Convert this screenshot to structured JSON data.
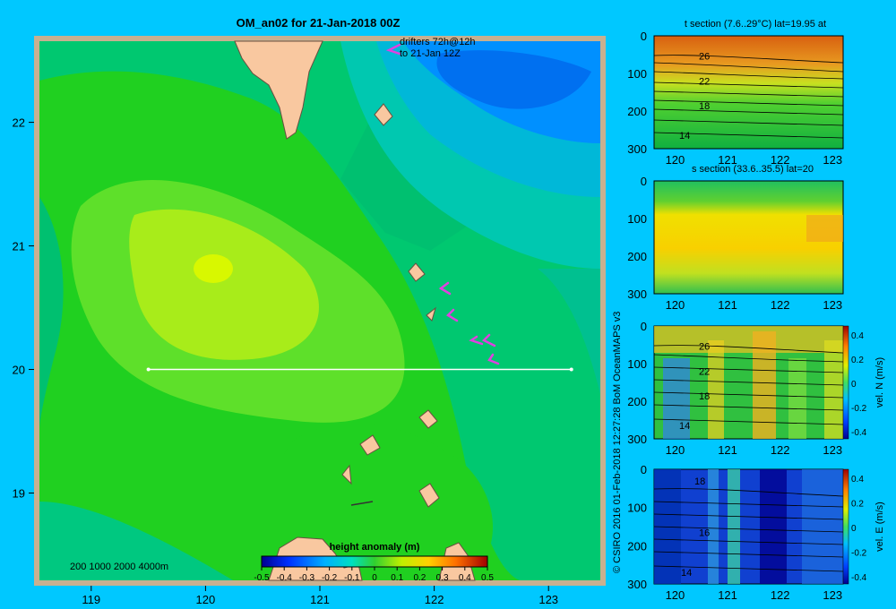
{
  "map": {
    "title": "OM_an02 for 21-Jan-2018 00Z",
    "drifter_note_line1": "drifters 72h@12h",
    "drifter_note_line2": "to 21-Jan 12Z",
    "depth_legend": "200  1000  2000  4000m",
    "colorbar_label": "height anomaly  (m)",
    "colorbar_ticks": [
      "-0.5",
      "-0.4",
      "-0.3",
      "-0.2",
      "-0.1",
      "0",
      "0.1",
      "0.2",
      "0.3",
      "0.4",
      "0.5"
    ],
    "x_ticks": [
      "119",
      "120",
      "121",
      "122",
      "123"
    ],
    "y_ticks": [
      "22",
      "21",
      "20",
      "19"
    ],
    "section_line": {
      "lat": 20,
      "lon_start": 119.5,
      "lon_end": 123.2
    }
  },
  "credit": "© CSIRO 2016   01-Feb-2018 12:27:28 BoM OceanMAPS v3",
  "panels": [
    {
      "title": "t section (7.6..29°C) lat=19.95 at",
      "y_ticks": [
        "0",
        "100",
        "200",
        "300"
      ],
      "x_ticks": [
        "120",
        "121",
        "122",
        "123"
      ],
      "contour_labels": [
        "26",
        "22",
        "18",
        "14"
      ]
    },
    {
      "title": "s section (33.6..35.5) lat=20",
      "y_ticks": [
        "0",
        "100",
        "200",
        "300"
      ],
      "x_ticks": [
        "120",
        "121",
        "122",
        "123"
      ]
    },
    {
      "title": "",
      "y_ticks": [
        "0",
        "100",
        "200",
        "300"
      ],
      "x_ticks": [
        "120",
        "121",
        "122",
        "123"
      ],
      "contour_labels": [
        "26",
        "22",
        "18",
        "14"
      ],
      "cbar_label": "vel. N (m/s)",
      "cbar_ticks": [
        "0.4",
        "0.2",
        "0",
        "-0.2",
        "-0.4"
      ]
    },
    {
      "title": "",
      "y_ticks": [
        "0",
        "100",
        "200",
        "300"
      ],
      "x_ticks": [
        "120",
        "121",
        "122",
        "123"
      ],
      "contour_labels": [
        "18",
        "16",
        "14"
      ],
      "cbar_label": "vel. E (m/s)",
      "cbar_ticks": [
        "0.4",
        "0.2",
        "0",
        "-0.2",
        "-0.4"
      ]
    }
  ],
  "chart_data": [
    {
      "type": "heatmap",
      "title": "OM_an02 for 21-Jan-2018 00Z",
      "xlabel": "",
      "ylabel": "",
      "xlim": [
        118.5,
        123.5
      ],
      "ylim": [
        18.25,
        22.7
      ],
      "colorbar": {
        "label": "height anomaly (m)",
        "range": [
          -0.5,
          0.5
        ]
      },
      "features": {
        "high_anomaly_center": [
          120.1,
          20.8
        ],
        "low_anomaly_center": [
          122.7,
          22.3
        ]
      }
    },
    {
      "type": "heatmap",
      "title": "t section (7.6..29°C) lat=19.95 at",
      "xlim": [
        119.6,
        123.2
      ],
      "ylim": [
        300,
        0
      ],
      "contours": [
        26,
        22,
        18,
        14
      ]
    },
    {
      "type": "heatmap",
      "title": "s section (33.6..35.5) lat=20",
      "xlim": [
        119.6,
        123.2
      ],
      "ylim": [
        300,
        0
      ]
    },
    {
      "type": "heatmap",
      "title": "",
      "xlim": [
        119.6,
        123.2
      ],
      "ylim": [
        300,
        0
      ],
      "colorbar": {
        "label": "vel. N (m/s)",
        "range": [
          -0.4,
          0.4
        ]
      }
    },
    {
      "type": "heatmap",
      "title": "",
      "xlim": [
        119.6,
        123.2
      ],
      "ylim": [
        300,
        0
      ],
      "colorbar": {
        "label": "vel. E (m/s)",
        "range": [
          -0.4,
          0.4
        ]
      }
    }
  ],
  "colors": {
    "background": "#00c8ff",
    "land": "#f9c8a0",
    "section_line": "#ffffff",
    "drifter": "#e040e0"
  }
}
